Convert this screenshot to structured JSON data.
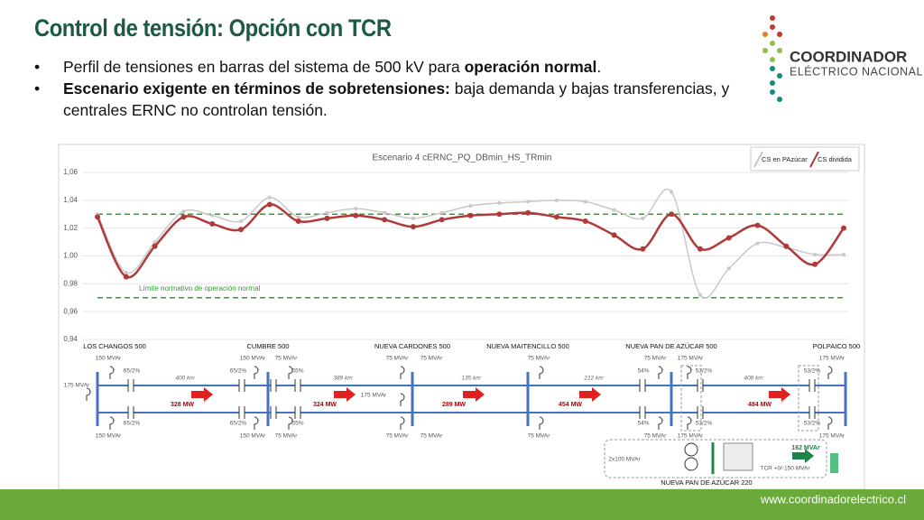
{
  "header": {
    "title": "Control de tensión: Opción con TCR",
    "bullets": [
      [
        {
          "text": "Perfil de tensiones en barras del sistema de 500 kV para "
        },
        {
          "text": "operación normal",
          "bold": true
        },
        {
          "text": "."
        }
      ],
      [
        {
          "text": "Escenario exigente en términos de sobretensiones:",
          "bold": true
        },
        {
          "text": " baja demanda y bajas transferencias, y centrales ERNC no controlan tensión."
        }
      ]
    ]
  },
  "logo": {
    "name": "COORDINADOR",
    "subtitle": "ELÉCTRICO NACIONAL"
  },
  "chart_data": {
    "type": "line",
    "title": "Escenario 4 cERNC_PQ_DBmin_HS_TRmin",
    "categories": [
      null,
      null,
      null,
      null,
      null,
      null,
      null,
      null,
      null,
      null,
      null,
      null,
      null,
      null,
      null,
      null,
      null,
      null,
      null,
      null,
      null,
      null,
      null,
      null,
      null,
      null,
      null
    ],
    "series": [
      {
        "name": "CS en PAzúcar",
        "color": "#c8c8c8",
        "values": [
          1.03,
          0.988,
          1.01,
          1.032,
          1.029,
          1.025,
          1.042,
          1.028,
          1.031,
          1.034,
          1.031,
          1.027,
          1.031,
          1.036,
          1.038,
          1.039,
          1.04,
          1.039,
          1.033,
          1.027,
          1.046,
          0.972,
          0.991,
          1.009,
          1.006,
          1.001,
          1.001
        ]
      },
      {
        "name": "CS dividida",
        "color": "#b03a3a",
        "values": [
          1.028,
          0.985,
          1.007,
          1.028,
          1.023,
          1.019,
          1.037,
          1.025,
          1.027,
          1.029,
          1.026,
          1.021,
          1.026,
          1.029,
          1.03,
          1.031,
          1.028,
          1.025,
          1.015,
          1.005,
          1.03,
          1.005,
          1.013,
          1.022,
          1.007,
          0.994,
          1.02
        ]
      }
    ],
    "ylim": [
      0.94,
      1.06
    ],
    "yticks": [
      {
        "value": 0.94,
        "label": "0,94"
      },
      {
        "value": 0.96,
        "label": "0,96"
      },
      {
        "value": 0.98,
        "label": "0,98"
      },
      {
        "value": 1.0,
        "label": "1,00"
      },
      {
        "value": 1.02,
        "label": "1,02"
      },
      {
        "value": 1.04,
        "label": "1,04"
      },
      {
        "value": 1.06,
        "label": "1,06"
      }
    ],
    "reference_lines": {
      "values": [
        1.03,
        0.97
      ],
      "color": "#2ca02c",
      "label": "Límite normativo de operación normal"
    },
    "legend": "top-right"
  },
  "diagram": {
    "buses": [
      "LOS CHANGOS 500",
      "CUMBRE 500",
      "NUEVA CARDONES 500",
      "NUEVA MAITENCILLO 500",
      "NUEVA PAN DE AZÚCAR 500",
      "POLPAICO 500"
    ],
    "distances": [
      "400 km",
      "389 km",
      "135 km",
      "212 km",
      "408 km"
    ],
    "flows": [
      "328 MW",
      "324 MW",
      "289 MW",
      "454 MW",
      "484 MW",
      "162 MVAr"
    ],
    "labels": [
      "150 MVAr",
      "65/2%",
      "65/2%",
      "150 MVAr",
      "175 MVAr",
      "150 MVAr",
      "75 MVAr",
      "65/2%",
      "55%",
      "65/2%",
      "55%",
      "150 MVAr",
      "75 MVAr",
      "175 MVAr",
      "75 MVAr",
      "75 MVAr",
      "75 MVAr",
      "75 MVAr",
      "75 MVAr",
      "75 MVAr",
      "54%",
      "75 MVAr",
      "175 MVAr",
      "53/2%",
      "54%",
      "75 MVAr",
      "175 MVAr",
      "53/2%",
      "53/2%",
      "175 MVAr",
      "53/2%",
      "175 MVAr",
      "2x100 MVAr",
      "TCR +0/-150 MVAr",
      "NUEVA PAN DE AZÚCAR 220"
    ]
  },
  "footer": {
    "url": "www.coordinadorelectrico.cl"
  }
}
